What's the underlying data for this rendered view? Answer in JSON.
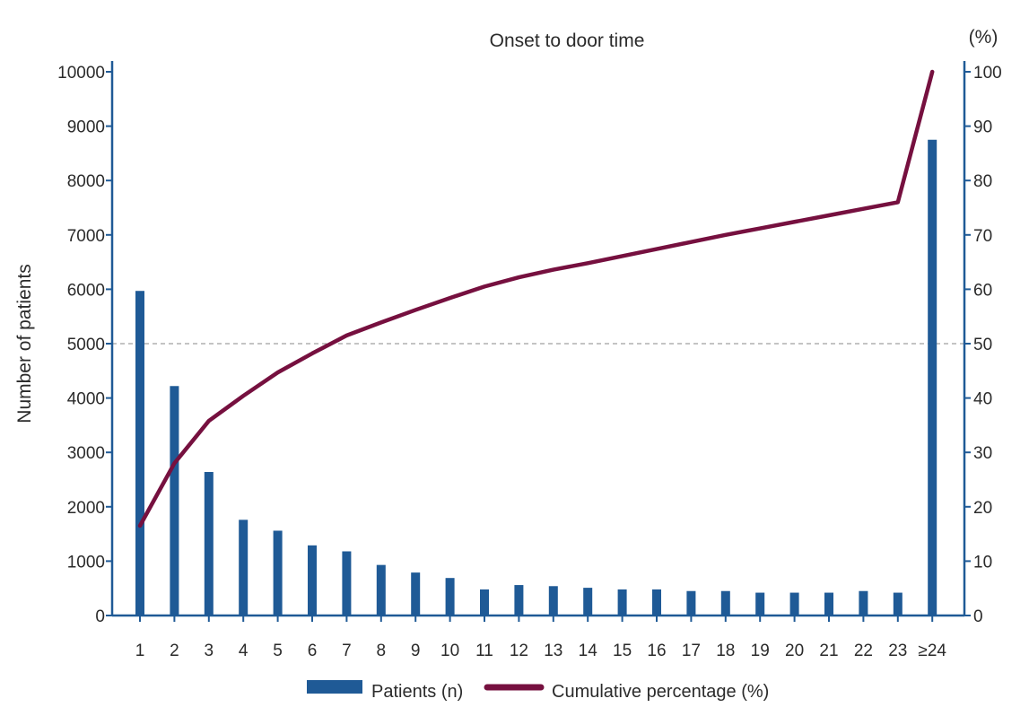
{
  "chart_data": {
    "type": "bar",
    "title": "Onset to door time",
    "ylabel": "Number of patients",
    "y2label": "(%)",
    "categories": [
      "1",
      "2",
      "3",
      "4",
      "5",
      "6",
      "7",
      "8",
      "9",
      "10",
      "11",
      "12",
      "13",
      "14",
      "15",
      "16",
      "17",
      "18",
      "19",
      "20",
      "21",
      "22",
      "23",
      "≥24"
    ],
    "ylim": [
      0,
      10000
    ],
    "y2lim": [
      0,
      100
    ],
    "yticks": [
      "0",
      "1000",
      "2000",
      "3000",
      "4000",
      "5000",
      "6000",
      "7000",
      "8000",
      "9000",
      "10000"
    ],
    "y2ticks": [
      "0",
      "10",
      "20",
      "30",
      "40",
      "50",
      "60",
      "70",
      "80",
      "90",
      "100"
    ],
    "reference_line": 5000,
    "series": [
      {
        "name": "Patients (n)",
        "type": "bar",
        "axis": "left",
        "color": "#1f5a96",
        "values": [
          5970,
          4220,
          2640,
          1760,
          1560,
          1290,
          1180,
          930,
          790,
          690,
          480,
          560,
          540,
          510,
          480,
          480,
          450,
          450,
          420,
          420,
          420,
          450,
          420,
          8750
        ]
      },
      {
        "name": "Cumulative percentage (%)",
        "type": "line",
        "axis": "right",
        "color": "#76103f",
        "values": [
          16.5,
          28,
          35.8,
          40.4,
          44.7,
          48.2,
          51.5,
          53.9,
          56.2,
          58.4,
          60.5,
          62.2,
          63.6,
          64.8,
          66.1,
          67.4,
          68.7,
          70.0,
          71.2,
          72.4,
          73.6,
          74.8,
          76.0,
          100
        ]
      }
    ],
    "legend_position": "bottom",
    "grid": false
  }
}
